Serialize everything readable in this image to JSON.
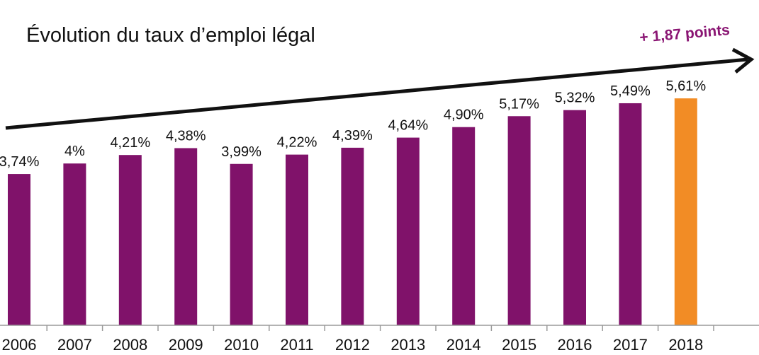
{
  "chart_data": {
    "type": "bar",
    "title": "Évolution du taux d’emploi légal",
    "categories": [
      "2006",
      "2007",
      "2008",
      "2009",
      "2010",
      "2011",
      "2012",
      "2013",
      "2014",
      "2015",
      "2016",
      "2017",
      "2018"
    ],
    "values": [
      3.74,
      4.0,
      4.21,
      4.38,
      3.99,
      4.22,
      4.39,
      4.64,
      4.9,
      5.17,
      5.32,
      5.49,
      5.61
    ],
    "data_labels": [
      "3,74%",
      "4%",
      "4,21%",
      "4,38%",
      "3,99%",
      "4,22%",
      "4,39%",
      "4,64%",
      "4,90%",
      "5,17%",
      "5,32%",
      "5,49%",
      "5,61%"
    ],
    "ylim": [
      0,
      6
    ],
    "xlabel": "",
    "ylabel": "",
    "grid": false,
    "legend": "none",
    "annotation": "+ 1,87 points",
    "colors": {
      "bar": "#80126a",
      "highlight_bar": "#f28c25",
      "annotation": "#8a1573",
      "arrow": "#111111"
    }
  }
}
